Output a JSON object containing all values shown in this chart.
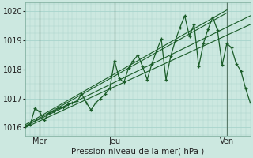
{
  "xlabel": "Pression niveau de la mer( hPa )",
  "ylim": [
    1015.7,
    1020.3
  ],
  "xlim": [
    0,
    48
  ],
  "yticks": [
    1016,
    1017,
    1018,
    1019,
    1020
  ],
  "xtick_labels": [
    "Mer",
    "Jeu",
    "Ven"
  ],
  "xtick_pos": [
    3,
    19,
    43
  ],
  "vlines": [
    3,
    19,
    43
  ],
  "bg_color": "#cce8e0",
  "grid_color": "#a8d4cc",
  "line_color": "#1a5c28",
  "marker_color": "#1a5c28",
  "hline_y": 1016.85,
  "hline_xmax": 0.88,
  "trend1_x": [
    0,
    48
  ],
  "trend1_y": [
    1016.05,
    1019.85
  ],
  "trend2_x": [
    0,
    48
  ],
  "trend2_y": [
    1016.0,
    1019.55
  ],
  "trend3_x": [
    0,
    43
  ],
  "trend3_y": [
    1016.05,
    1019.95
  ],
  "trend4_x": [
    0,
    43
  ],
  "trend4_y": [
    1016.1,
    1020.05
  ],
  "wavy_x": [
    0,
    1,
    2,
    3,
    4,
    5,
    6,
    7,
    8,
    9,
    10,
    11,
    12,
    13,
    14,
    15,
    16,
    17,
    18,
    19,
    20,
    21,
    22,
    23,
    24,
    25,
    26,
    27,
    28,
    29,
    30,
    31,
    32,
    33,
    34,
    35,
    36,
    37,
    38,
    39,
    40,
    41,
    42,
    43,
    44,
    45,
    46,
    47,
    48
  ],
  "wavy_y": [
    1016.05,
    1016.1,
    1016.65,
    1016.55,
    1016.25,
    1016.5,
    1016.55,
    1016.65,
    1016.7,
    1016.8,
    1016.85,
    1016.9,
    1017.15,
    1016.85,
    1016.6,
    1016.85,
    1017.0,
    1017.15,
    1017.35,
    1018.3,
    1017.7,
    1017.55,
    1018.05,
    1018.3,
    1018.5,
    1018.1,
    1017.65,
    1018.2,
    1018.65,
    1019.05,
    1017.65,
    1018.45,
    1019.0,
    1019.45,
    1019.85,
    1019.15,
    1019.55,
    1018.1,
    1018.9,
    1019.4,
    1019.8,
    1019.35,
    1018.15,
    1018.9,
    1018.75,
    1018.2,
    1017.95,
    1017.35,
    1016.85
  ]
}
